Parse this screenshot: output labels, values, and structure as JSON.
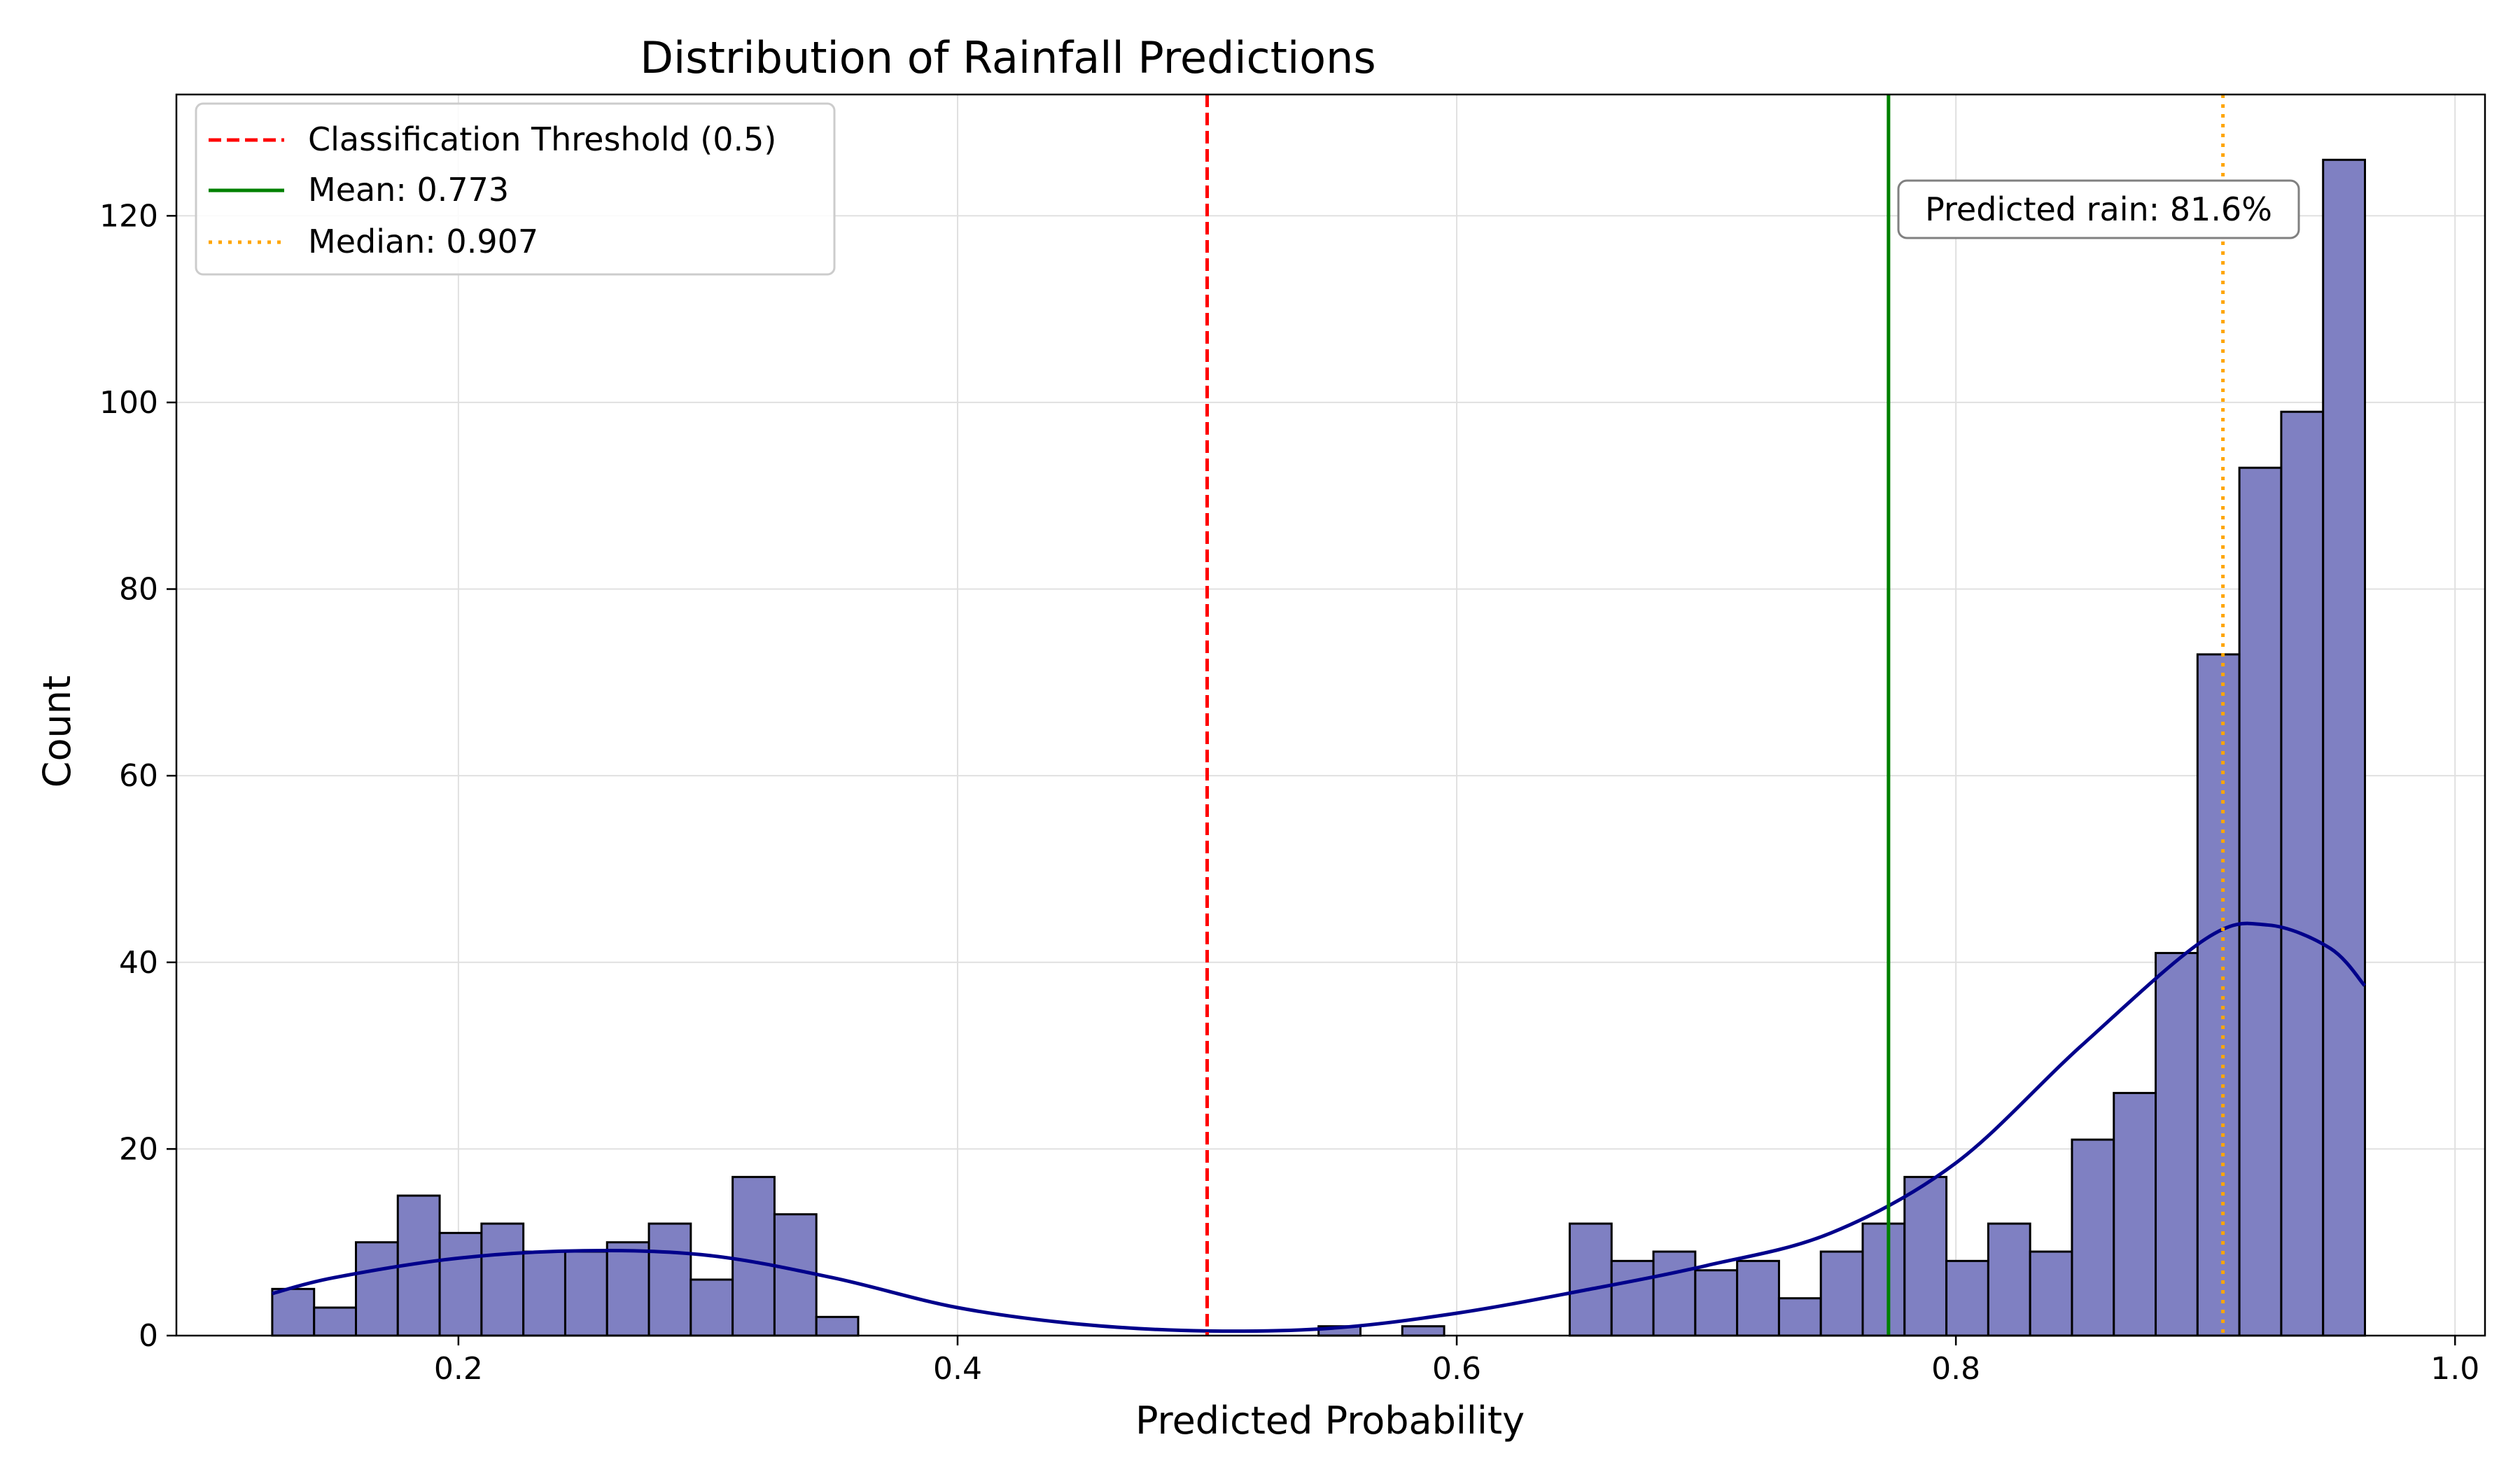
{
  "chart_data": {
    "type": "bar",
    "title": "Distribution of Rainfall Predictions",
    "xlabel": "Predicted Probability",
    "ylabel": "Count",
    "xlim": [
      0.087,
      1.012
    ],
    "ylim": [
      0,
      133
    ],
    "xticks": [
      0.2,
      0.4,
      0.6,
      0.8,
      1.0
    ],
    "xtick_labels": [
      "0.2",
      "0.4",
      "0.6",
      "0.8",
      "1.0"
    ],
    "yticks": [
      0,
      20,
      40,
      60,
      80,
      100,
      120
    ],
    "ytick_labels": [
      "0",
      "20",
      "40",
      "60",
      "80",
      "100",
      "120"
    ],
    "grid": true,
    "histogram": {
      "bin_start": 0.1254,
      "bin_width": 0.01677,
      "counts": [
        5,
        3,
        10,
        15,
        11,
        12,
        9,
        9,
        10,
        12,
        6,
        17,
        13,
        2,
        0,
        0,
        0,
        0,
        0,
        0,
        0,
        0,
        0,
        0,
        0,
        1,
        0,
        1,
        0,
        0,
        0,
        12,
        8,
        9,
        7,
        8,
        4,
        9,
        12,
        17,
        8,
        12,
        9,
        21,
        26,
        41,
        73,
        93,
        99,
        126
      ],
      "fill_color": "#7f80c2",
      "edge_color": "#000000"
    },
    "kde": {
      "color": "#00008b",
      "x": [
        0.1254,
        0.15,
        0.2,
        0.25,
        0.3,
        0.35,
        0.4,
        0.45,
        0.5,
        0.55,
        0.6,
        0.65,
        0.7,
        0.75,
        0.8,
        0.85,
        0.9,
        0.925,
        0.95,
        0.9638
      ],
      "y": [
        4.5,
        6.2,
        8.3,
        9.1,
        8.6,
        6.2,
        3.0,
        1.2,
        0.5,
        0.8,
        2.4,
        4.8,
        7.5,
        11.0,
        18.5,
        31.0,
        42.5,
        44.0,
        41.5,
        37.5
      ]
    },
    "reference_lines": [
      {
        "label": "Classification Threshold (0.5)",
        "x": 0.5,
        "color": "#ff0000",
        "style": "dashed"
      },
      {
        "label": "Mean: 0.773",
        "x": 0.773,
        "color": "#008000",
        "style": "solid"
      },
      {
        "label": "Median: 0.907",
        "x": 0.907,
        "color": "#ffa500",
        "style": "dotted"
      }
    ],
    "legend": {
      "placement": "top-left"
    },
    "annotation": {
      "text": "Predicted rain: 81.6%",
      "placement": "top-right"
    }
  }
}
